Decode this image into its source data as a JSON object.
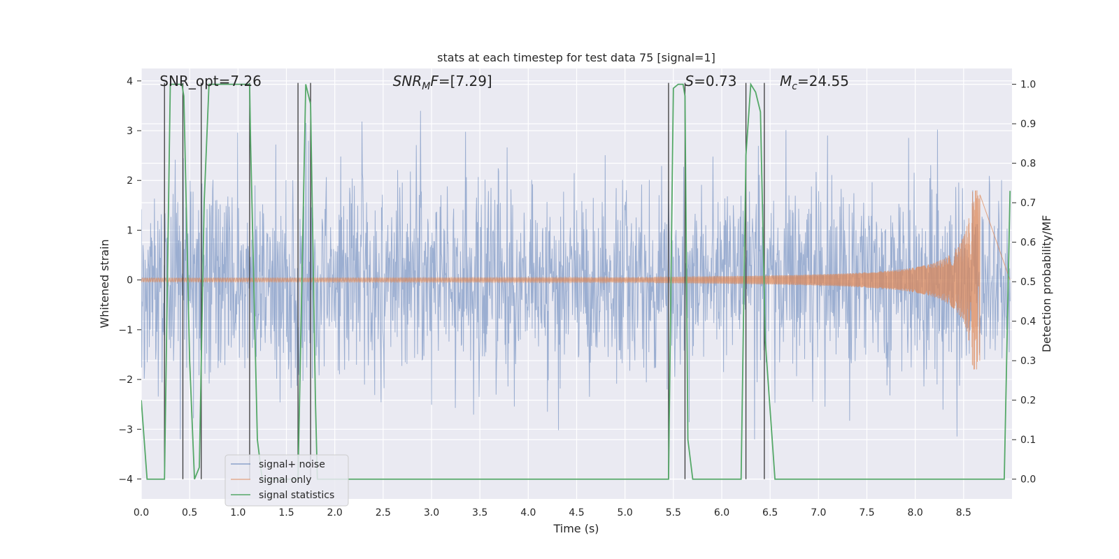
{
  "chart_data": {
    "type": "line",
    "title": "stats at each timestep for test data 75 [signal=1]",
    "xlabel": "Time (s)",
    "ylabel_left": "Whitened strain",
    "ylabel_right": "Detection probability/MF",
    "xlim": [
      0.0,
      9.0
    ],
    "ylim_left": [
      -4.4,
      4.25
    ],
    "ylim_right": [
      -0.05,
      1.04
    ],
    "xticks": [
      0.0,
      0.5,
      1.0,
      1.5,
      2.0,
      2.5,
      3.0,
      3.5,
      4.0,
      4.5,
      5.0,
      5.5,
      6.0,
      6.5,
      7.0,
      7.5,
      8.0,
      8.5
    ],
    "xtick_labels": [
      "0.0",
      "0.5",
      "1.0",
      "1.5",
      "2.0",
      "2.5",
      "3.0",
      "3.5",
      "4.0",
      "4.5",
      "5.0",
      "5.5",
      "6.0",
      "6.5",
      "7.0",
      "7.5",
      "8.0",
      "8.5"
    ],
    "yticks_left": [
      -4,
      -3,
      -2,
      -1,
      0,
      1,
      2,
      3,
      4
    ],
    "ytick_labels_left": [
      "−4",
      "−3",
      "−2",
      "−1",
      "0",
      "1",
      "2",
      "3",
      "4"
    ],
    "yticks_right": [
      0.0,
      0.1,
      0.2,
      0.3,
      0.4,
      0.5,
      0.6,
      0.7,
      0.8,
      0.9,
      1.0
    ],
    "ytick_labels_right": [
      "0.0",
      "0.1",
      "0.2",
      "0.3",
      "0.4",
      "0.5",
      "0.6",
      "0.7",
      "0.8",
      "0.9",
      "1.0"
    ],
    "annotations": [
      {
        "name": "snr-opt",
        "parts": [
          {
            "text": "SNR_opt=7.26",
            "italic": false
          }
        ],
        "x": 0.19
      },
      {
        "name": "snr-mf",
        "parts": [
          {
            "text": "SNR",
            "italic": true
          },
          {
            "text": "M",
            "italic": true,
            "sub": true
          },
          {
            "text": "F",
            "italic": true
          },
          {
            "text": "=[7.29]",
            "italic": false
          }
        ],
        "x": 2.6
      },
      {
        "name": "s-value",
        "parts": [
          {
            "text": "S",
            "italic": true
          },
          {
            "text": "=0.73",
            "italic": false
          }
        ],
        "x": 5.62
      },
      {
        "name": "chirp-mass",
        "parts": [
          {
            "text": "M",
            "italic": true
          },
          {
            "text": "c",
            "italic": true,
            "sub": true
          },
          {
            "text": "=24.55",
            "italic": false
          }
        ],
        "x": 6.6
      }
    ],
    "legend": {
      "position": "lower-left",
      "entries": [
        {
          "label": "signal+ noise",
          "color": "#4c72b0"
        },
        {
          "label": "signal only",
          "color": "#dd8452"
        },
        {
          "label": "signal statistics",
          "color": "#55a868"
        }
      ]
    },
    "colors": {
      "background": "#eaeaf2",
      "grid": "#ffffff",
      "noise": "#4c72b0",
      "signal": "#dd8452",
      "stats": "#55a868",
      "vlines": "#3a3a3a"
    },
    "series": [
      {
        "name": "signal+ noise",
        "description": "whitened strain noise, approx. Gaussian sigma 1, t from 0 to 8.98 s at 2048 Hz",
        "t_start": 0.0,
        "t_end": 8.98,
        "samples": 2048
      },
      {
        "name": "signal only",
        "description": "chirp waveform growing to about ±1.8 near merger",
        "t_merge": 8.67,
        "peak_amplitude": 1.8
      },
      {
        "name": "signal statistics",
        "t": [
          0.0,
          0.03,
          0.06,
          0.24,
          0.3,
          0.42,
          0.44,
          0.5,
          0.55,
          0.6,
          0.65,
          0.7,
          0.75,
          1.12,
          1.13,
          1.2,
          1.25,
          1.62,
          1.7,
          1.75,
          1.8,
          1.82,
          5.45,
          5.5,
          5.55,
          5.6,
          5.62,
          5.65,
          5.7,
          6.2,
          6.25,
          6.3,
          6.35,
          6.4,
          6.45,
          6.55,
          6.6,
          8.92,
          8.98
        ],
        "values": [
          0.2,
          0.1,
          0.0,
          0.0,
          1.0,
          1.0,
          0.97,
          0.3,
          0.0,
          0.03,
          0.7,
          1.0,
          1.0,
          1.0,
          0.85,
          0.1,
          0.0,
          0.0,
          1.0,
          0.95,
          0.2,
          0.0,
          0.0,
          0.99,
          1.0,
          1.0,
          0.97,
          0.1,
          0.0,
          0.0,
          0.82,
          1.0,
          0.98,
          0.93,
          0.35,
          0.0,
          0.0,
          0.0,
          0.73
        ]
      }
    ],
    "vlines": [
      0.24,
      0.43,
      0.62,
      1.12,
      1.62,
      1.75,
      5.45,
      5.62,
      6.25,
      6.44
    ]
  }
}
